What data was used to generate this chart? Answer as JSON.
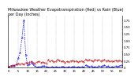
{
  "title": "Milwaukee Weather Evapotranspiration (Red) vs Rain (Blue)\nper Day (Inches)",
  "rain": [
    0.02,
    0.05,
    0.08,
    0.05,
    0.12,
    0.35,
    0.55,
    1.1,
    1.75,
    0.45,
    0.08,
    0.12,
    0.18,
    0.1,
    0.05,
    0.0,
    0.02,
    0.02,
    0.05,
    0.05,
    0.02,
    0.0,
    0.0,
    0.02,
    0.0,
    0.02,
    0.0,
    0.0,
    0.02,
    0.03,
    0.0,
    0.0,
    0.02,
    0.0,
    0.03,
    0.02,
    0.0,
    0.02,
    0.0,
    0.03,
    0.0,
    0.08,
    0.05,
    0.02,
    0.05,
    0.0,
    0.02,
    0.0,
    0.05,
    0.03,
    0.05,
    0.08,
    0.03,
    0.05,
    0.0,
    0.02,
    0.0,
    0.05,
    0.02,
    0.05,
    0.08
  ],
  "et": [
    0.04,
    0.06,
    0.05,
    0.08,
    0.1,
    0.15,
    0.12,
    0.14,
    0.1,
    0.18,
    0.15,
    0.2,
    0.22,
    0.18,
    0.15,
    0.2,
    0.22,
    0.18,
    0.2,
    0.18,
    0.15,
    0.28,
    0.22,
    0.25,
    0.2,
    0.22,
    0.3,
    0.25,
    0.22,
    0.24,
    0.18,
    0.22,
    0.19,
    0.24,
    0.26,
    0.22,
    0.24,
    0.2,
    0.22,
    0.24,
    0.2,
    0.3,
    0.26,
    0.28,
    0.25,
    0.22,
    0.28,
    0.25,
    0.28,
    0.24,
    0.26,
    0.28,
    0.24,
    0.26,
    0.22,
    0.24,
    0.22,
    0.26,
    0.24,
    0.26,
    0.22
  ],
  "rain_color": "#0000ff",
  "et_color": "#cc0000",
  "bg_color": "#ffffff",
  "ylim": [
    0,
    1.9
  ],
  "yticks": [
    0.0,
    0.25,
    0.5,
    0.75,
    1.0,
    1.25,
    1.5,
    1.75
  ],
  "grid_color": "#888888",
  "n_points": 61,
  "x_tick_every": 5,
  "title_fontsize": 3.5,
  "tick_fontsize": 2.8
}
